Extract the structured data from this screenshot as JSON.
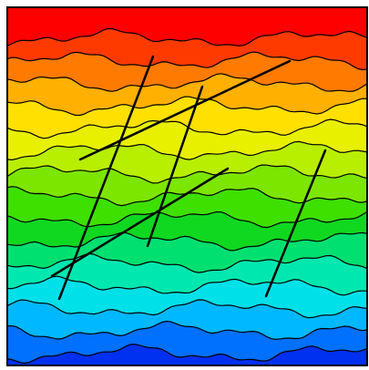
{
  "chart_data": {
    "type": "contour",
    "colors": [
      "#ff0000",
      "#ff3a00",
      "#ff7a00",
      "#ffb000",
      "#ffe000",
      "#e8f000",
      "#b8ee00",
      "#7ce600",
      "#3ee000",
      "#10d820",
      "#00e070",
      "#00e8b0",
      "#00e0e8",
      "#00b8ff",
      "#0070ff",
      "#0030f0"
    ]
  }
}
